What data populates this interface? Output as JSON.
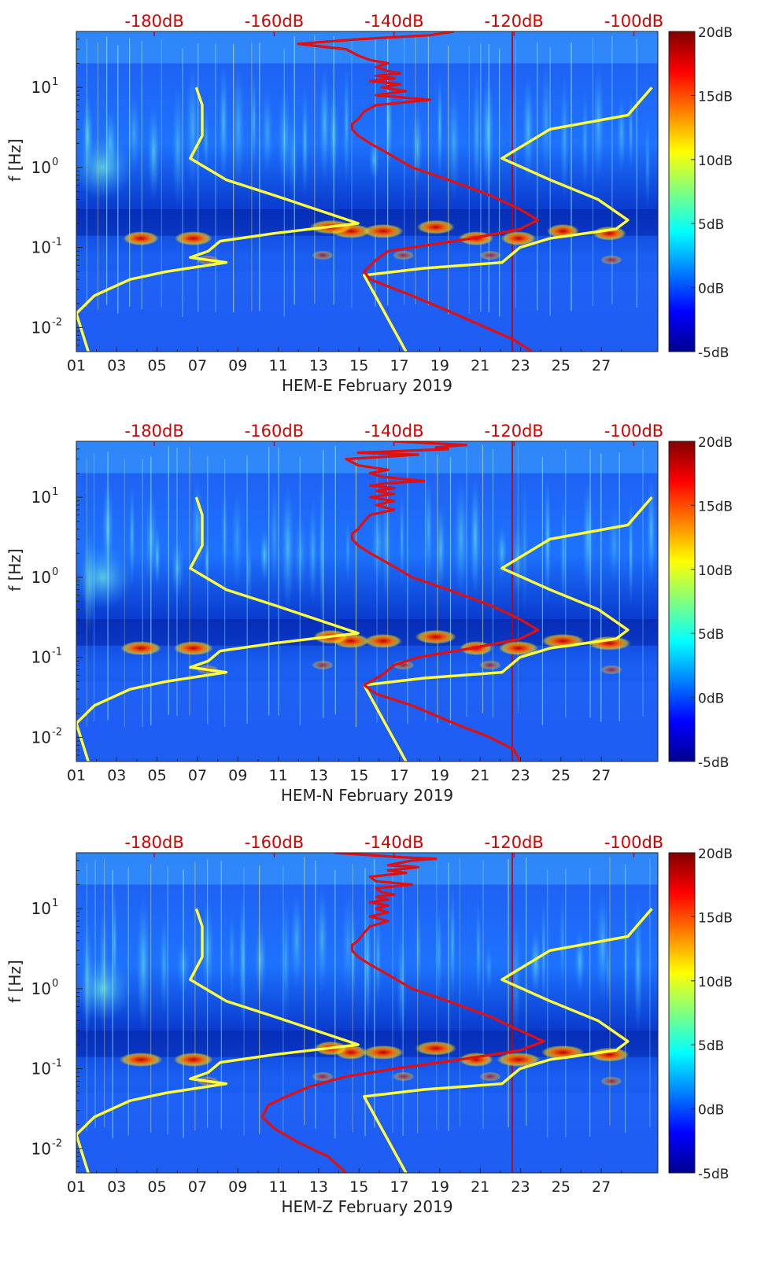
{
  "panels": [
    {
      "xlabel": "HEM-E February 2019",
      "red": [
        [
          -130,
          50
        ],
        [
          -134,
          45
        ],
        [
          -146,
          40
        ],
        [
          -156,
          35
        ],
        [
          -148,
          30
        ],
        [
          -146,
          25
        ],
        [
          -144,
          22
        ],
        [
          -141,
          20
        ],
        [
          -143,
          18
        ],
        [
          -141,
          16
        ],
        [
          -139,
          15
        ],
        [
          -143,
          14
        ],
        [
          -140,
          13
        ],
        [
          -144,
          12
        ],
        [
          -139,
          11
        ],
        [
          -142,
          10
        ],
        [
          -138,
          9
        ],
        [
          -143,
          8
        ],
        [
          -134,
          7
        ],
        [
          -143,
          6
        ],
        [
          -145,
          5
        ],
        [
          -146,
          4
        ],
        [
          -147,
          3.5
        ],
        [
          -147,
          3
        ],
        [
          -146,
          2.5
        ],
        [
          -144,
          2
        ],
        [
          -141,
          1.5
        ],
        [
          -137,
          1
        ],
        [
          -131,
          0.7
        ],
        [
          -124,
          0.45
        ],
        [
          -119,
          0.3
        ],
        [
          -116,
          0.22
        ],
        [
          -119,
          0.17
        ],
        [
          -127,
          0.13
        ],
        [
          -137,
          0.1
        ],
        [
          -141,
          0.09
        ],
        [
          -143,
          0.07
        ],
        [
          -145,
          0.05
        ],
        [
          -144,
          0.04
        ],
        [
          -137,
          0.025
        ],
        [
          -130,
          0.015
        ],
        [
          -120,
          0.007
        ],
        [
          -117,
          0.005
        ]
      ]
    },
    {
      "xlabel": "HEM-N February 2019",
      "red": [
        [
          -140,
          50
        ],
        [
          -128,
          45
        ],
        [
          -133,
          42
        ],
        [
          -131,
          40
        ],
        [
          -146,
          36
        ],
        [
          -136,
          34
        ],
        [
          -148,
          30
        ],
        [
          -146,
          25
        ],
        [
          -141,
          22
        ],
        [
          -144,
          20
        ],
        [
          -142,
          18
        ],
        [
          -135,
          16
        ],
        [
          -141,
          15
        ],
        [
          -144,
          14
        ],
        [
          -140,
          13
        ],
        [
          -143,
          12
        ],
        [
          -140,
          11
        ],
        [
          -144,
          10
        ],
        [
          -140,
          9
        ],
        [
          -143,
          8
        ],
        [
          -140,
          7
        ],
        [
          -144,
          6
        ],
        [
          -145,
          5
        ],
        [
          -146,
          4
        ],
        [
          -147,
          3.5
        ],
        [
          -147,
          3
        ],
        [
          -146,
          2.5
        ],
        [
          -144,
          2
        ],
        [
          -141,
          1.5
        ],
        [
          -137,
          1
        ],
        [
          -131,
          0.7
        ],
        [
          -124,
          0.45
        ],
        [
          -119,
          0.3
        ],
        [
          -116,
          0.22
        ],
        [
          -119,
          0.17
        ],
        [
          -127,
          0.13
        ],
        [
          -136,
          0.1
        ],
        [
          -140,
          0.08
        ],
        [
          -142,
          0.06
        ],
        [
          -145,
          0.045
        ],
        [
          -143,
          0.035
        ],
        [
          -137,
          0.025
        ],
        [
          -130,
          0.015
        ],
        [
          -124,
          0.01
        ],
        [
          -120,
          0.007
        ],
        [
          -119,
          0.005
        ]
      ]
    },
    {
      "xlabel": "HEM-Z February 2019",
      "red": [
        [
          -150,
          50
        ],
        [
          -139,
          44
        ],
        [
          -133,
          42
        ],
        [
          -137,
          40
        ],
        [
          -141,
          35
        ],
        [
          -136,
          33
        ],
        [
          -141,
          30
        ],
        [
          -138,
          28
        ],
        [
          -144,
          25
        ],
        [
          -143,
          22
        ],
        [
          -137,
          20
        ],
        [
          -143,
          18
        ],
        [
          -142,
          16
        ],
        [
          -140,
          15
        ],
        [
          -143,
          14
        ],
        [
          -141,
          13
        ],
        [
          -144,
          12
        ],
        [
          -141,
          11
        ],
        [
          -143,
          10
        ],
        [
          -141,
          9
        ],
        [
          -144,
          8
        ],
        [
          -141,
          7
        ],
        [
          -144,
          6
        ],
        [
          -145,
          5
        ],
        [
          -146,
          4
        ],
        [
          -147,
          3.5
        ],
        [
          -147,
          3
        ],
        [
          -146,
          2.5
        ],
        [
          -144,
          2
        ],
        [
          -141,
          1.5
        ],
        [
          -137,
          1
        ],
        [
          -131,
          0.7
        ],
        [
          -124,
          0.45
        ],
        [
          -119,
          0.3
        ],
        [
          -115,
          0.22
        ],
        [
          -119,
          0.17
        ],
        [
          -129,
          0.13
        ],
        [
          -140,
          0.1
        ],
        [
          -148,
          0.08
        ],
        [
          -154,
          0.06
        ],
        [
          -158,
          0.045
        ],
        [
          -161,
          0.035
        ],
        [
          -162,
          0.025
        ],
        [
          -160,
          0.018
        ],
        [
          -156,
          0.012
        ],
        [
          -151,
          0.008
        ],
        [
          -148,
          0.005
        ]
      ]
    }
  ],
  "chart_data": {
    "type": "heatmap",
    "x_tick_labels": [
      "01",
      "03",
      "05",
      "07",
      "09",
      "11",
      "13",
      "15",
      "17",
      "19",
      "21",
      "23",
      "25",
      "27"
    ],
    "x_ticks_day": [
      1,
      3,
      5,
      7,
      9,
      11,
      13,
      15,
      17,
      19,
      21,
      23,
      25,
      27
    ],
    "x_range": [
      1,
      29.8
    ],
    "ylabel": "f [Hz]",
    "y_scale": "log",
    "y_range": [
      0.005,
      50
    ],
    "y_tick_labels": [
      "10^-2",
      "10^-1",
      "10^0",
      "10^1"
    ],
    "y_ticks": [
      0.01,
      0.1,
      1,
      10
    ],
    "top_axis": {
      "tick_labels": [
        "-180dB",
        "-160dB",
        "-140dB",
        "-120dB",
        "-100dB"
      ],
      "ticks_db": [
        -180,
        -160,
        -140,
        -120,
        -100
      ],
      "range_db": [
        -193,
        -96
      ],
      "color": "#d40000"
    },
    "colorbar": {
      "tick_labels": [
        "20dB",
        "15dB",
        "10dB",
        "5dB",
        "0dB",
        "-5dB"
      ],
      "ticks": [
        20,
        15,
        10,
        5,
        0,
        -5
      ],
      "range": [
        -5,
        20
      ],
      "colormap": "jet"
    },
    "yellow_curves": [
      {
        "db_f": [
          [
            -173,
            10
          ],
          [
            -172,
            6
          ],
          [
            -172,
            2.5
          ],
          [
            -174,
            1.3
          ],
          [
            -168,
            0.7
          ],
          [
            -160,
            0.45
          ],
          [
            -153,
            0.3
          ],
          [
            -146,
            0.2
          ],
          [
            -160,
            0.15
          ],
          [
            -169,
            0.12
          ],
          [
            -171,
            0.09
          ],
          [
            -174,
            0.075
          ],
          [
            -168,
            0.065
          ],
          [
            -178,
            0.05
          ],
          [
            -184,
            0.04
          ],
          [
            -190,
            0.025
          ],
          [
            -193,
            0.015
          ],
          [
            -191,
            0.005
          ]
        ]
      },
      {
        "db_f": [
          [
            -97,
            10
          ],
          [
            -101,
            4.5
          ],
          [
            -114,
            3
          ],
          [
            -122,
            1.3
          ],
          [
            -114,
            0.7
          ],
          [
            -106,
            0.4
          ],
          [
            -101,
            0.22
          ],
          [
            -103,
            0.17
          ],
          [
            -114,
            0.13
          ],
          [
            -119,
            0.1
          ],
          [
            -122,
            0.065
          ],
          [
            -135,
            0.055
          ],
          [
            -145,
            0.045
          ],
          [
            -138,
            0.005
          ]
        ]
      }
    ],
    "red_curve_note": "per-panel red curve values (dB, Hz) stored in panels[].red"
  }
}
